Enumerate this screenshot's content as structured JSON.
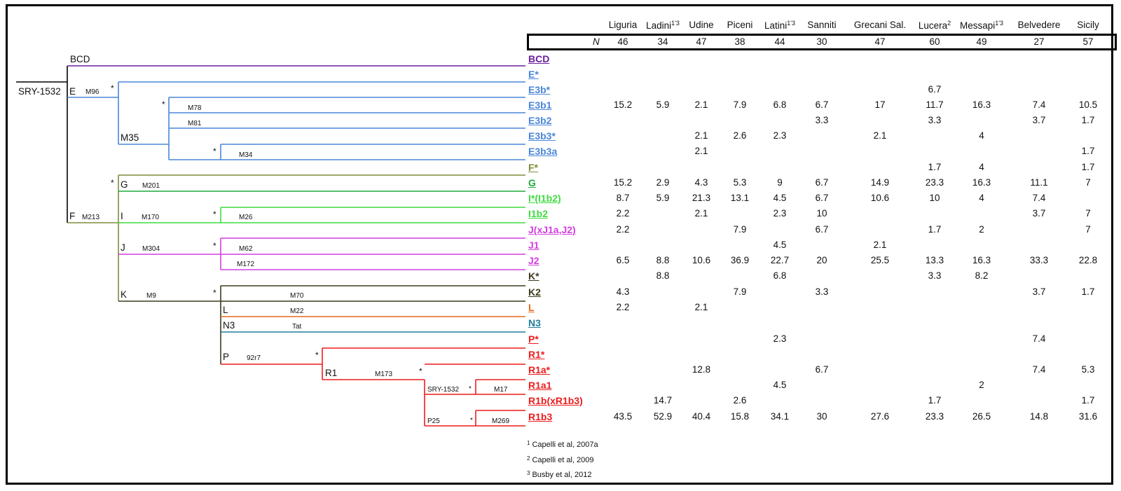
{
  "colors": {
    "BCD": "#6a1fa0",
    "E": "#4a86d8",
    "F": "#7e8c3a",
    "G": "#1faa3c",
    "I": "#3fdc3f",
    "J": "#d43ee0",
    "K": "#3d3a1e",
    "L": "#e56a1a",
    "N3": "#1e7e9a",
    "R": "#ee1c1c",
    "black": "#000000"
  },
  "tree_labels": {
    "root": "SRY-1532",
    "BCD": "BCD",
    "E": "E",
    "M96": "M96",
    "M35": "M35",
    "M78": "M78",
    "M81": "M81",
    "M34": "M34",
    "F": "F",
    "M213": "M213",
    "G": "G",
    "M201": "M201",
    "I": "I",
    "M170": "M170",
    "M26": "M26",
    "J": "J",
    "M304": "M304",
    "M62": "M62",
    "M172": "M172",
    "K": "K",
    "M9": "M9",
    "M70": "M70",
    "L": "L",
    "M22": "M22",
    "N3": "N3",
    "Tat": "Tat",
    "P": "P",
    "92r7": "92r7",
    "R1": "R1",
    "M173": "M173",
    "SRY1532b": "SRY-1532",
    "M17": "M17",
    "P25": "P25",
    "M269": "M269",
    "star": "*"
  },
  "table": {
    "n_label": "N",
    "columns": [
      {
        "name": "Liguria",
        "sup": "",
        "n": "46"
      },
      {
        "name": "Ladini",
        "sup": "1'3",
        "n": "34"
      },
      {
        "name": "Udine",
        "sup": "",
        "n": "47"
      },
      {
        "name": "Piceni",
        "sup": "",
        "n": "38"
      },
      {
        "name": "Latini",
        "sup": "1'3",
        "n": "44"
      },
      {
        "name": "Sanniti",
        "sup": "",
        "n": "30"
      },
      {
        "name": "Grecani Sal.",
        "sup": "",
        "n": "47"
      },
      {
        "name": "Lucera",
        "sup": "2",
        "n": "60"
      },
      {
        "name": "Messapi",
        "sup": "1'3",
        "n": "49"
      },
      {
        "name": "Belvedere",
        "sup": "",
        "n": "27"
      },
      {
        "name": "Sicily",
        "sup": "",
        "n": "57"
      }
    ],
    "rows": [
      {
        "hg": "BCD",
        "color": "BCD",
        "values": [
          "",
          "",
          "",
          "",
          "",
          "",
          "",
          "",
          "",
          "",
          ""
        ]
      },
      {
        "hg": "E*",
        "color": "E",
        "values": [
          "",
          "",
          "",
          "",
          "",
          "",
          "",
          "",
          "",
          "",
          ""
        ]
      },
      {
        "hg": "E3b*",
        "color": "E",
        "values": [
          "",
          "",
          "",
          "",
          "",
          "",
          "",
          "6.7",
          "",
          "",
          ""
        ]
      },
      {
        "hg": "E3b1",
        "color": "E",
        "values": [
          "15.2",
          "5.9",
          "2.1",
          "7.9",
          "6.8",
          "6.7",
          "17",
          "11.7",
          "16.3",
          "7.4",
          "10.5"
        ]
      },
      {
        "hg": "E3b2",
        "color": "E",
        "values": [
          "",
          "",
          "",
          "",
          "",
          "3.3",
          "",
          "3.3",
          "",
          "3.7",
          "1.7"
        ]
      },
      {
        "hg": "E3b3*",
        "color": "E",
        "values": [
          "",
          "",
          "2.1",
          "2.6",
          "2.3",
          "",
          "2.1",
          "",
          "4",
          "",
          ""
        ]
      },
      {
        "hg": "E3b3a",
        "color": "E",
        "values": [
          "",
          "",
          "2.1",
          "",
          "",
          "",
          "",
          "",
          "",
          "",
          "1.7"
        ]
      },
      {
        "hg": "F*",
        "color": "F",
        "values": [
          "",
          "",
          "",
          "",
          "",
          "",
          "",
          "1.7",
          "4",
          "",
          "1.7"
        ]
      },
      {
        "hg": "G",
        "color": "G",
        "values": [
          "15.2",
          "2.9",
          "4.3",
          "5.3",
          "9",
          "6.7",
          "14.9",
          "23.3",
          "16.3",
          "11.1",
          "7"
        ]
      },
      {
        "hg": "I*(I1b2)",
        "color": "I",
        "values": [
          "8.7",
          "5.9",
          "21.3",
          "13.1",
          "4.5",
          "6.7",
          "10.6",
          "10",
          "4",
          "7.4",
          ""
        ]
      },
      {
        "hg": "I1b2",
        "color": "I",
        "values": [
          "2.2",
          "",
          "2.1",
          "",
          "2.3",
          "10",
          "",
          "",
          "",
          "3.7",
          "7"
        ]
      },
      {
        "hg": "J(xJ1a,J2)",
        "color": "J",
        "values": [
          "2.2",
          "",
          "",
          "7.9",
          "",
          "6.7",
          "",
          "1.7",
          "2",
          "",
          "7"
        ]
      },
      {
        "hg": "J1",
        "color": "J",
        "values": [
          "",
          "",
          "",
          "",
          "4.5",
          "",
          "2.1",
          "",
          "",
          "",
          ""
        ]
      },
      {
        "hg": "J2",
        "color": "J",
        "values": [
          "6.5",
          "8.8",
          "10.6",
          "36.9",
          "22.7",
          "20",
          "25.5",
          "13.3",
          "16.3",
          "33.3",
          "22.8"
        ]
      },
      {
        "hg": "K*",
        "color": "K",
        "values": [
          "",
          "8.8",
          "",
          "",
          "6.8",
          "",
          "",
          "3.3",
          "8.2",
          "",
          ""
        ]
      },
      {
        "hg": "K2",
        "color": "K",
        "values": [
          "4.3",
          "",
          "",
          "7.9",
          "",
          "3.3",
          "",
          "",
          "",
          "3.7",
          "1.7"
        ]
      },
      {
        "hg": "L",
        "color": "L",
        "values": [
          "2.2",
          "",
          "2.1",
          "",
          "",
          "",
          "",
          "",
          "",
          "",
          ""
        ]
      },
      {
        "hg": "N3",
        "color": "N3",
        "values": [
          "",
          "",
          "",
          "",
          "",
          "",
          "",
          "",
          "",
          "",
          ""
        ]
      },
      {
        "hg": "P*",
        "color": "R",
        "values": [
          "",
          "",
          "",
          "",
          "2.3",
          "",
          "",
          "",
          "",
          "7.4",
          ""
        ]
      },
      {
        "hg": "R1*",
        "color": "R",
        "values": [
          "",
          "",
          "",
          "",
          "",
          "",
          "",
          "",
          "",
          "",
          ""
        ]
      },
      {
        "hg": "R1a*",
        "color": "R",
        "values": [
          "",
          "",
          "12.8",
          "",
          "",
          "6.7",
          "",
          "",
          "",
          "7.4",
          "5.3"
        ]
      },
      {
        "hg": "R1a1",
        "color": "R",
        "values": [
          "",
          "",
          "",
          "",
          "4.5",
          "",
          "",
          "",
          "2",
          "",
          ""
        ]
      },
      {
        "hg": "R1b(xR1b3)",
        "color": "R",
        "values": [
          "",
          "14.7",
          "",
          "2.6",
          "",
          "",
          "",
          "1.7",
          "",
          "",
          "1.7"
        ]
      },
      {
        "hg": "R1b3",
        "color": "R",
        "values": [
          "43.5",
          "52.9",
          "40.4",
          "15.8",
          "34.1",
          "30",
          "27.6",
          "23.3",
          "26.5",
          "14.8",
          "31.6"
        ]
      }
    ]
  },
  "footnotes": [
    {
      "sup": "1",
      "text": "Capelli et al, 2007a"
    },
    {
      "sup": "2",
      "text": "Capelli et al, 2009"
    },
    {
      "sup": "3",
      "text": "Busby et al, 2012"
    }
  ]
}
